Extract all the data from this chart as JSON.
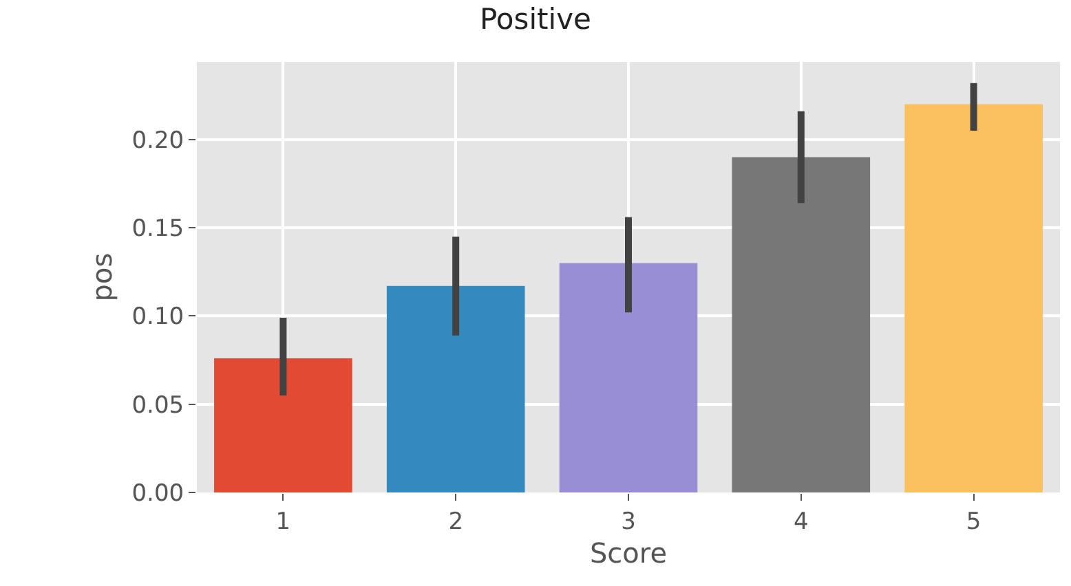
{
  "chart_data": {
    "type": "bar",
    "title": "Positive",
    "xlabel": "Score",
    "ylabel": "pos",
    "categories": [
      "1",
      "2",
      "3",
      "4",
      "5"
    ],
    "values": [
      0.076,
      0.117,
      0.13,
      0.19,
      0.22
    ],
    "colors": [
      "#e24a33",
      "#348abd",
      "#988ed5",
      "#777777",
      "#fbc15e"
    ],
    "errors": [
      [
        0.055,
        0.099
      ],
      [
        0.089,
        0.145
      ],
      [
        0.102,
        0.156
      ],
      [
        0.164,
        0.216
      ],
      [
        0.205,
        0.232
      ]
    ],
    "ylim": [
      0,
      0.244
    ],
    "yticks": [
      {
        "value": 0,
        "label": "0.00"
      },
      {
        "value": 0.05,
        "label": "0.05"
      },
      {
        "value": 0.1,
        "label": "0.10"
      },
      {
        "value": 0.15,
        "label": "0.15"
      },
      {
        "value": 0.2,
        "label": "0.20"
      }
    ],
    "grid": true
  }
}
